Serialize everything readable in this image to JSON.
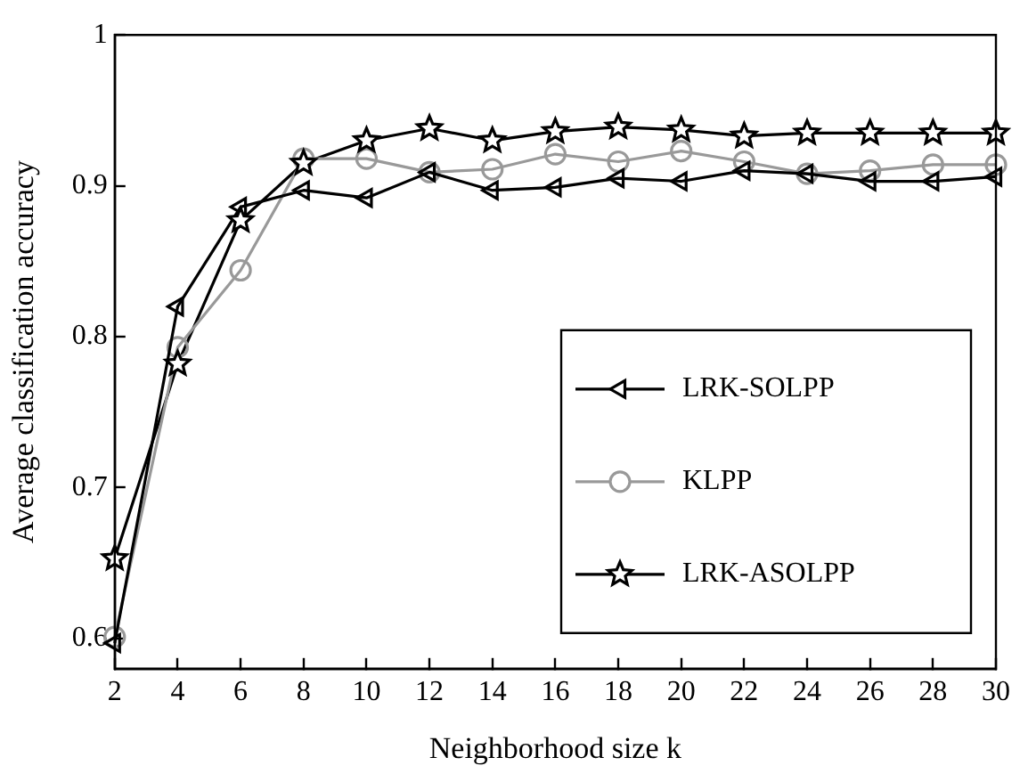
{
  "chart_data": {
    "type": "line",
    "xlabel": "Neighborhood size k",
    "ylabel": "Average classification accuracy",
    "x": [
      2,
      4,
      6,
      8,
      10,
      12,
      14,
      16,
      18,
      20,
      22,
      24,
      26,
      28,
      30
    ],
    "series": [
      {
        "name": "LRK-SOLPP",
        "color": "#000000",
        "marker": "triangle",
        "values": [
          0.597,
          0.82,
          0.886,
          0.897,
          0.892,
          0.909,
          0.897,
          0.899,
          0.905,
          0.903,
          0.91,
          0.908,
          0.903,
          0.903,
          0.906
        ]
      },
      {
        "name": "KLPP",
        "color": "#999999",
        "marker": "circle",
        "values": [
          0.601,
          0.793,
          0.844,
          0.918,
          0.918,
          0.909,
          0.911,
          0.921,
          0.916,
          0.923,
          0.916,
          0.908,
          0.91,
          0.914,
          0.914
        ]
      },
      {
        "name": "LRK-ASOLPP",
        "color": "#000000",
        "marker": "star",
        "values": [
          0.653,
          0.782,
          0.877,
          0.915,
          0.93,
          0.938,
          0.93,
          0.936,
          0.939,
          0.937,
          0.933,
          0.935,
          0.935,
          0.935,
          0.935
        ]
      }
    ],
    "xlim": [
      2,
      30
    ],
    "xticks": [
      2,
      4,
      6,
      8,
      10,
      12,
      14,
      16,
      18,
      20,
      22,
      24,
      26,
      28,
      30
    ],
    "ylim": [
      0.58,
      1
    ],
    "yticks": [
      0.6,
      0.7,
      0.8,
      0.9,
      1
    ],
    "grid": false,
    "legend": "bottom right",
    "line_style": "solid"
  }
}
